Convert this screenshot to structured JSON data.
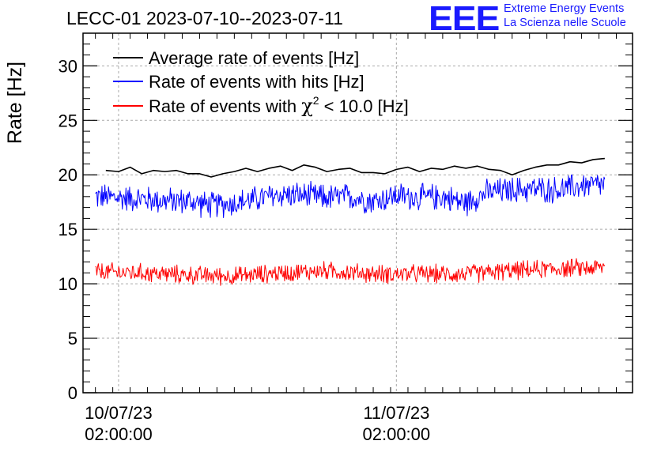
{
  "header": {
    "title": "LECC-01 2023-07-10--2023-07-11",
    "logo": "EEE",
    "logo_line1": "Extreme Energy Events",
    "logo_line2": "La Scienza nelle Scuole"
  },
  "chart_data": {
    "type": "line",
    "title": "LECC-01 2023-07-10--2023-07-11",
    "xlabel": "",
    "ylabel": "Rate [Hz]",
    "ylim": [
      0,
      33
    ],
    "y_ticks": [
      0,
      5,
      10,
      15,
      20,
      25,
      30
    ],
    "x_unit": "hours since 2023-07-10 00:00:00",
    "xlim": [
      -1.07,
      46.4
    ],
    "x_ticks": [
      {
        "x": 2,
        "label_date": "10/07/23",
        "label_time": "02:00:00"
      },
      {
        "x": 26,
        "label_date": "11/07/23",
        "label_time": "02:00:00"
      }
    ],
    "grid": true,
    "legend_position": "top-left",
    "series": [
      {
        "name": "Average rate of events [Hz]",
        "color": "#000000",
        "x": [
          0.9,
          2,
          3,
          4,
          5,
          6,
          7,
          8,
          9,
          10,
          11,
          12,
          13,
          14,
          15,
          16,
          17,
          18,
          19,
          20,
          21,
          22,
          23,
          24,
          25,
          26,
          27,
          28,
          29,
          30,
          31,
          32,
          33,
          34,
          35,
          36,
          37,
          38,
          39,
          40,
          41,
          42,
          43,
          44
        ],
        "values": [
          20.4,
          20.3,
          20.7,
          20.1,
          20.4,
          20.3,
          20.4,
          20.1,
          20.1,
          19.8,
          20.1,
          20.3,
          20.6,
          20.3,
          20.6,
          20.8,
          20.4,
          20.9,
          20.7,
          20.3,
          20.5,
          20.6,
          20.2,
          20.2,
          20.1,
          20.5,
          20.7,
          20.3,
          20.6,
          20.5,
          20.8,
          20.6,
          20.8,
          20.5,
          20.4,
          20.0,
          20.4,
          20.7,
          20.9,
          20.9,
          21.2,
          21.1,
          21.4,
          21.5
        ]
      },
      {
        "name": "Rate of events with hits [Hz]",
        "color": "#0000ff",
        "noise_amplitude": 1.3,
        "x": [
          0,
          2,
          4,
          6,
          8,
          10,
          12,
          14,
          16,
          18,
          20,
          22,
          24,
          26,
          28,
          30,
          32,
          33,
          34,
          36,
          38,
          40,
          42,
          44
        ],
        "values": [
          18.0,
          17.9,
          17.8,
          17.6,
          17.6,
          17.2,
          17.4,
          17.8,
          18.2,
          18.1,
          17.9,
          18.0,
          17.6,
          18.1,
          17.9,
          18.0,
          17.4,
          18.0,
          18.4,
          18.6,
          18.7,
          18.6,
          19.0,
          19.1
        ]
      },
      {
        "name": "Rate of events with χ² < 10.0 [Hz]",
        "color": "#ff0000",
        "noise_amplitude": 0.9,
        "x": [
          0,
          4,
          8,
          12,
          16,
          20,
          24,
          28,
          32,
          36,
          40,
          44
        ],
        "values": [
          11.1,
          11.0,
          10.8,
          10.7,
          11.0,
          11.2,
          10.9,
          10.9,
          10.9,
          11.2,
          11.4,
          11.5
        ]
      }
    ]
  },
  "legend": {
    "avg": "Average rate of events [Hz]",
    "hits_label": "Rate of events with hits [Hz]",
    "chi_prefix": "Rate of events with ",
    "chi_symbol": "χ",
    "chi_sup": "2",
    "chi_suffix": " < 10.0 [Hz]"
  }
}
